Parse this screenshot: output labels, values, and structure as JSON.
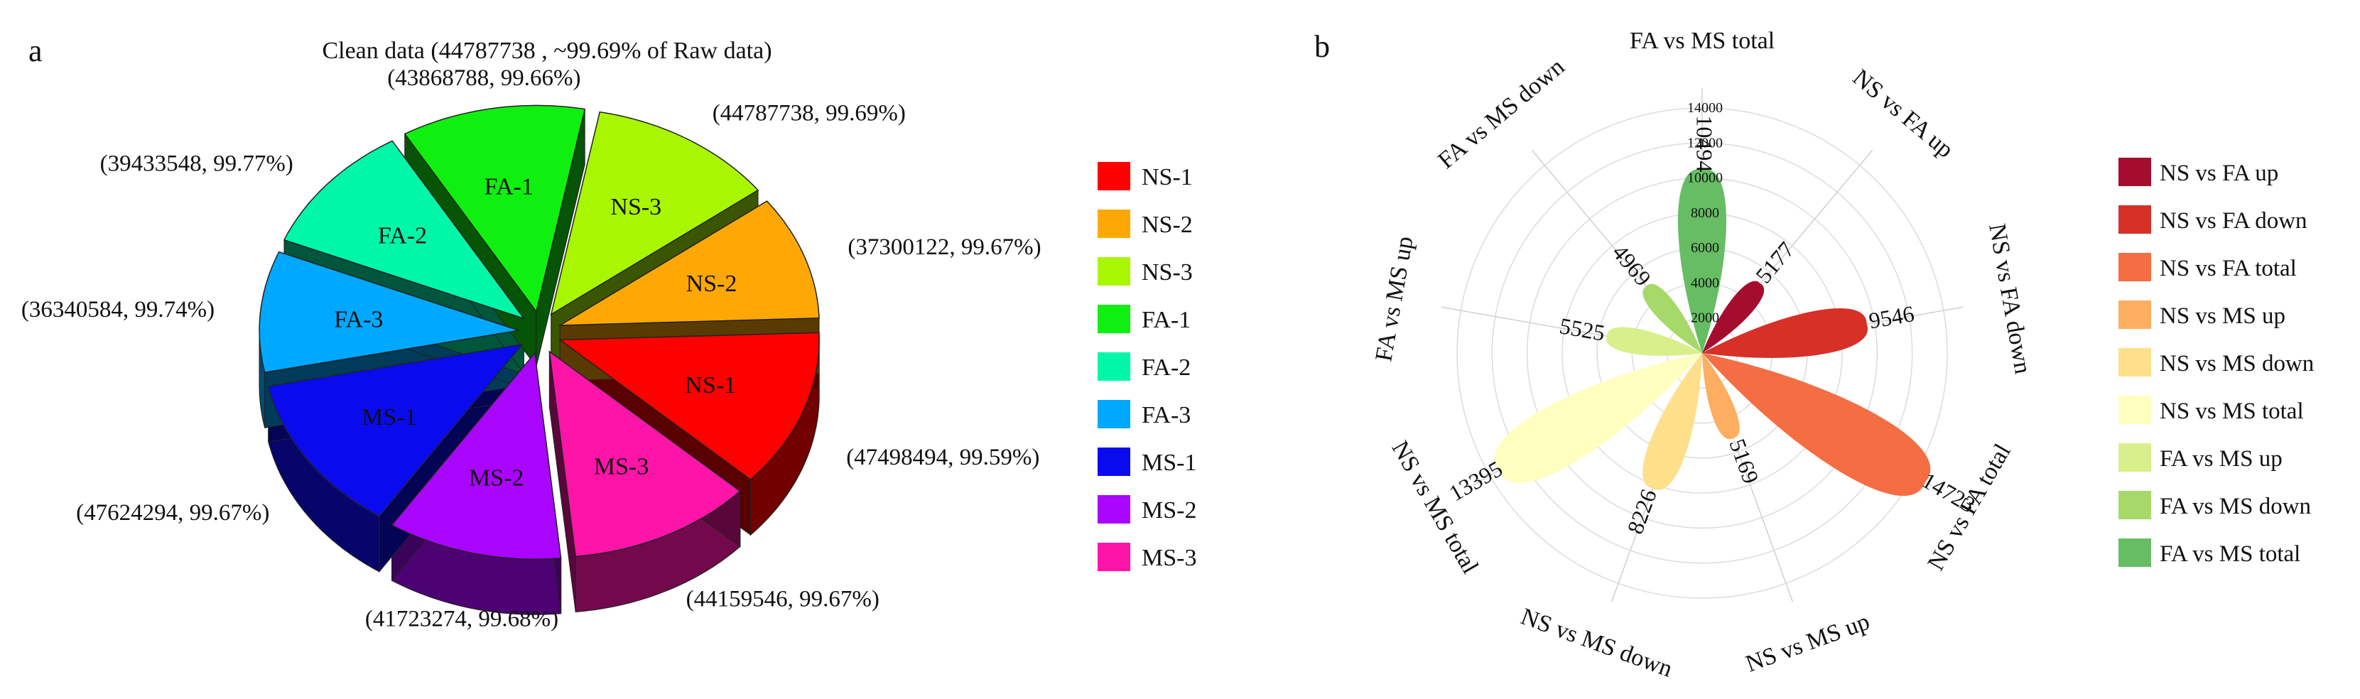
{
  "chart_data": [
    {
      "type": "pie",
      "panel_label": "a",
      "title": "Clean data (44787738 ,  ~99.69% of Raw data)",
      "style": "exploded 3D pie",
      "slices": [
        {
          "label": "NS-1",
          "color": "#ff0000",
          "value": 47498494,
          "percent": "99.59%",
          "callout": "(47498494, 99.59%)"
        },
        {
          "label": "MS-3",
          "color": "#ff14a8",
          "value": 44159546,
          "percent": "99.67%",
          "callout": "(44159546, 99.67%)"
        },
        {
          "label": "MS-2",
          "color": "#a905ff",
          "value": 41723274,
          "percent": "99.68%",
          "callout": "(41723274, 99.68%)"
        },
        {
          "label": "MS-1",
          "color": "#0a0aef",
          "value": 47624294,
          "percent": "99.67%",
          "callout": "(47624294, 99.67%)"
        },
        {
          "label": "FA-3",
          "color": "#00a8ff",
          "value": 36340584,
          "percent": "99.74%",
          "callout": "(36340584, 99.74%)"
        },
        {
          "label": "FA-2",
          "color": "#00f7a8",
          "value": 39433548,
          "percent": "99.77%",
          "callout": "(39433548, 99.77%)"
        },
        {
          "label": "FA-1",
          "color": "#10f010",
          "value": 43868788,
          "percent": "99.66%",
          "callout": "(43868788, 99.66%)"
        },
        {
          "label": "NS-3",
          "color": "#a8f700",
          "value": 44787738,
          "percent": "99.69%",
          "callout": "(44787738, 99.69%)"
        },
        {
          "label": "NS-2",
          "color": "#ffa805",
          "value": 37300122,
          "percent": "99.67%",
          "callout": "(37300122, 99.67%)"
        }
      ],
      "legend": [
        "NS-1",
        "NS-2",
        "NS-3",
        "FA-1",
        "FA-2",
        "FA-3",
        "MS-1",
        "MS-2",
        "MS-3"
      ],
      "legend_position": "right"
    },
    {
      "type": "radial_petal",
      "panel_label": "b",
      "radial_axis": {
        "min": 0,
        "max": 14000,
        "ticks": [
          2000,
          4000,
          6000,
          8000,
          10000,
          12000,
          14000
        ]
      },
      "series": [
        {
          "name": "NS vs FA up",
          "value": 5177,
          "color": "#a50d2f"
        },
        {
          "name": "NS vs FA down",
          "value": 9546,
          "color": "#d73027"
        },
        {
          "name": "NS vs FA total",
          "value": 14723,
          "color": "#f46d43"
        },
        {
          "name": "NS vs MS up",
          "value": 5169,
          "color": "#fdae61"
        },
        {
          "name": "NS vs MS down",
          "value": 8226,
          "color": "#fee08b"
        },
        {
          "name": "NS vs MS total",
          "value": 13395,
          "color": "#ffffbf"
        },
        {
          "name": "FA vs MS up",
          "value": 5525,
          "color": "#d9ef8b"
        },
        {
          "name": "FA vs MS down",
          "value": 4969,
          "color": "#a6d96a"
        },
        {
          "name": "FA vs MS total",
          "value": 10494,
          "color": "#66bd63"
        }
      ],
      "legend_position": "right"
    }
  ]
}
